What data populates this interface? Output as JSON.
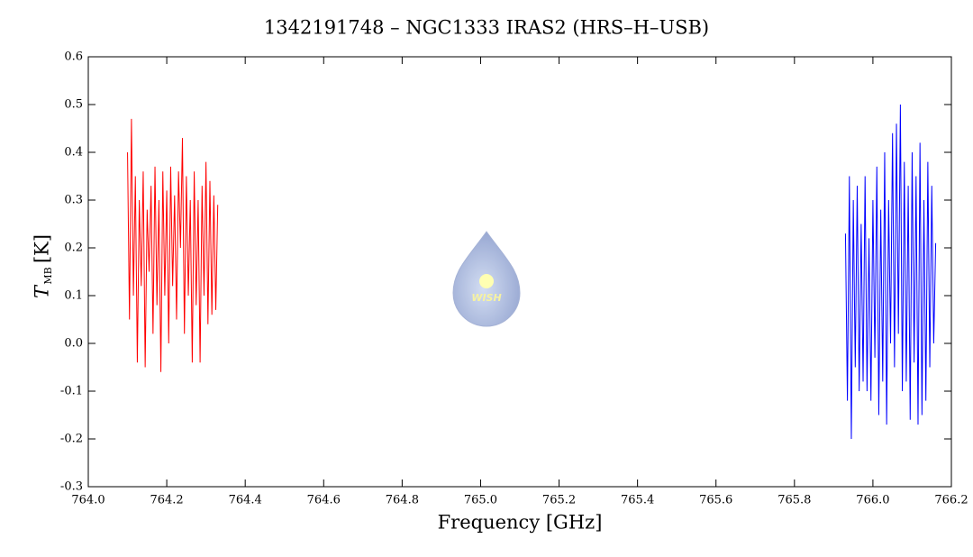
{
  "chart_data": {
    "type": "line",
    "title": "1342191748 – NGC1333 IRAS2 (HRS–H–USB)",
    "xlabel": "Frequency [GHz]",
    "ylabel": {
      "symbol": "T",
      "subscript": "MB",
      "unit": "[K]"
    },
    "annotation": "WISH",
    "xlim": [
      764.0,
      766.2
    ],
    "ylim": [
      -0.3,
      0.6
    ],
    "xticks": [
      {
        "value": 764,
        "label": "764.0"
      },
      764.2,
      764.4,
      764.6,
      764.8,
      {
        "value": 765,
        "label": "765.0"
      },
      765.2,
      765.4,
      765.6,
      765.8,
      {
        "value": 766,
        "label": "766.0"
      },
      766.2
    ],
    "yticks": [
      -0.3,
      -0.2,
      -0.1,
      {
        "value": 0,
        "label": "0.0"
      },
      0.1,
      0.2,
      0.3,
      0.4,
      0.5,
      0.6
    ],
    "series": [
      {
        "color": "#ff0000",
        "x": [
          764.1,
          764.105,
          764.11,
          764.115,
          764.12,
          764.125,
          764.13,
          764.135,
          764.14,
          764.145,
          764.15,
          764.155,
          764.16,
          764.165,
          764.17,
          764.175,
          764.18,
          764.185,
          764.19,
          764.195,
          764.2,
          764.205,
          764.21,
          764.215,
          764.22,
          764.225,
          764.23,
          764.235,
          764.24,
          764.245,
          764.25,
          764.255,
          764.26,
          764.265,
          764.27,
          764.275,
          764.28,
          764.285,
          764.29,
          764.295,
          764.3,
          764.305,
          764.31,
          764.315,
          764.32,
          764.325,
          764.33
        ],
        "values": [
          0.4,
          0.05,
          0.47,
          0.1,
          0.35,
          -0.04,
          0.3,
          0.12,
          0.36,
          -0.05,
          0.28,
          0.15,
          0.33,
          0.02,
          0.37,
          0.08,
          0.3,
          -0.06,
          0.36,
          0.1,
          0.32,
          0.0,
          0.37,
          0.12,
          0.31,
          0.05,
          0.36,
          0.2,
          0.43,
          0.02,
          0.35,
          0.1,
          0.3,
          -0.04,
          0.36,
          0.08,
          0.3,
          -0.04,
          0.33,
          0.1,
          0.38,
          0.04,
          0.34,
          0.06,
          0.31,
          0.07,
          0.29
        ]
      },
      {
        "color": "#0000ff",
        "x": [
          765.93,
          765.935,
          765.94,
          765.945,
          765.95,
          765.955,
          765.96,
          765.965,
          765.97,
          765.975,
          765.98,
          765.985,
          765.99,
          765.995,
          766,
          766.005,
          766.01,
          766.015,
          766.02,
          766.025,
          766.03,
          766.035,
          766.04,
          766.045,
          766.05,
          766.055,
          766.06,
          766.065,
          766.07,
          766.075,
          766.08,
          766.085,
          766.09,
          766.095,
          766.1,
          766.105,
          766.11,
          766.115,
          766.12,
          766.125,
          766.13,
          766.135,
          766.14,
          766.145,
          766.15,
          766.155,
          766.16
        ],
        "values": [
          0.23,
          -0.12,
          0.35,
          -0.2,
          0.3,
          -0.05,
          0.33,
          -0.1,
          0.25,
          -0.08,
          0.35,
          -0.1,
          0.22,
          -0.12,
          0.3,
          -0.03,
          0.37,
          -0.15,
          0.28,
          -0.08,
          0.4,
          -0.17,
          0.3,
          0.0,
          0.44,
          -0.05,
          0.46,
          0.02,
          0.5,
          -0.1,
          0.38,
          -0.08,
          0.33,
          -0.16,
          0.4,
          -0.04,
          0.35,
          -0.17,
          0.42,
          -0.15,
          0.3,
          -0.12,
          0.38,
          -0.05,
          0.33,
          0.0,
          0.21
        ]
      }
    ]
  }
}
